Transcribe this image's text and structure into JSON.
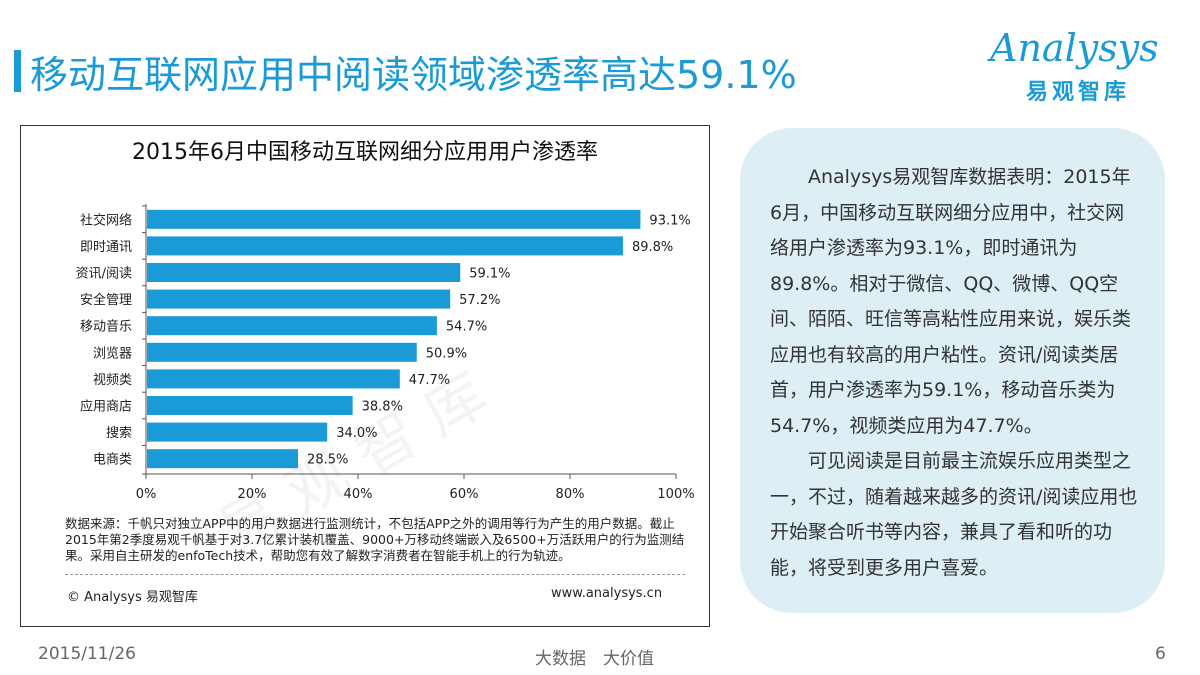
{
  "header": {
    "title": "移动互联网应用中阅读领域渗透率高达59.1%",
    "logo_word": "Analysys",
    "logo_sub": "易观智库"
  },
  "chart_data": {
    "type": "bar",
    "orientation": "horizontal",
    "title": "2015年6月中国移动互联网细分应用用户渗透率",
    "categories": [
      "社交网络",
      "即时通讯",
      "资讯/阅读",
      "安全管理",
      "移动音乐",
      "浏览器",
      "视频类",
      "应用商店",
      "搜索",
      "电商类"
    ],
    "values": [
      93.1,
      89.8,
      59.1,
      57.2,
      54.7,
      50.9,
      47.7,
      38.8,
      34.0,
      28.5
    ],
    "value_labels": [
      "93.1%",
      "89.8%",
      "59.1%",
      "57.2%",
      "54.7%",
      "50.9%",
      "47.7%",
      "38.8%",
      "34.0%",
      "28.5%"
    ],
    "xlim": [
      0,
      100
    ],
    "xticks": [
      "0%",
      "20%",
      "40%",
      "60%",
      "80%",
      "100%"
    ],
    "bar_color": "#1a9ad6",
    "grid": false,
    "watermark": "易 观 智 库"
  },
  "chart_note": "数据来源：千帆只对独立APP中的用户数据进行监测统计，不包括APP之外的调用等行为产生的用户数据。截止2015年第2季度易观千帆基于对3.7亿累计装机覆盖、9000+万移动终端嵌入及6500+万活跃用户的行为监测结果。采用自主研发的enfoTech技术，帮助您有效了解数字消费者在智能手机上的行为轨迹。",
  "chart_copyright": "© Analysys 易观智库",
  "chart_site": "www.analysys.cn",
  "panel": {
    "para1": "Analysys易观智库数据表明：2015年6月，中国移动互联网细分应用中，社交网络用户渗透率为93.1%，即时通讯为89.8%。相对于微信、QQ、微博、QQ空间、陌陌、旺信等高粘性应用来说，娱乐类应用也有较高的用户粘性。资讯/阅读类居首，用户渗透率为59.1%，移动音乐类为54.7%，视频类应用为47.7%。",
    "para2": "可见阅读是目前最主流娱乐应用类型之一，不过，随着越来越多的资讯/阅读应用也开始聚合听书等内容，兼具了看和听的功能，将受到更多用户喜爱。"
  },
  "footer": {
    "date": "2015/11/26",
    "slogan": "大数据　大价值",
    "page": "6"
  }
}
